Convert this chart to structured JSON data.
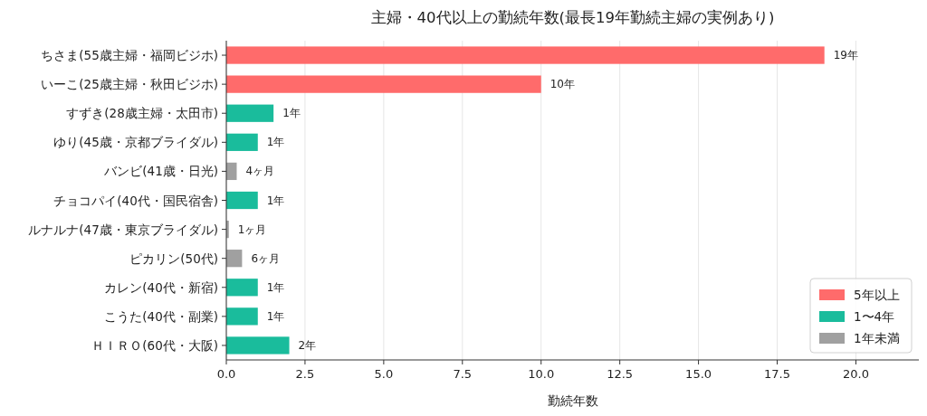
{
  "chart_data": {
    "type": "bar",
    "orientation": "horizontal",
    "title": "主婦・40代以上の勤続年数(最長19年勤続主婦の実例あり)",
    "xlabel": "勤続年数",
    "categories": [
      "ちさま(55歳主婦・福岡ビジホ)",
      "いーこ(25歳主婦・秋田ビジホ)",
      "すずき(28歳主婦・太田市)",
      "ゆり(45歳・京都ブライダル)",
      "バンビ(41歳・日光)",
      "チョコパイ(40代・国民宿舎)",
      "ルナルナ(47歳・東京ブライダル)",
      "ピカリン(50代)",
      "カレン(40代・新宿)",
      "こうた(40代・副業)",
      "ＨＩＲＯ(60代・大阪)"
    ],
    "series": [
      {
        "name": "5年以上",
        "color": "#ff6b6b",
        "values": [
          19,
          10,
          null,
          null,
          null,
          null,
          null,
          null,
          null,
          null,
          null
        ]
      },
      {
        "name": "1〜4年",
        "color": "#1abc9c",
        "values": [
          null,
          null,
          1.5,
          1,
          null,
          1,
          null,
          null,
          1,
          1,
          2
        ]
      },
      {
        "name": "1年未満",
        "color": "#a0a0a0",
        "values": [
          null,
          null,
          null,
          null,
          0.33,
          null,
          0.08,
          0.5,
          null,
          null,
          null
        ]
      }
    ],
    "value_labels": [
      "19年",
      "10年",
      "1年",
      "1年",
      "4ヶ月",
      "1年",
      "1ヶ月",
      "6ヶ月",
      "1年",
      "1年",
      "2年"
    ],
    "xlim": [
      0,
      22
    ],
    "xticks": [
      {
        "value": 0,
        "label": "0.0"
      },
      {
        "value": 2.5,
        "label": "2.5"
      },
      {
        "value": 5,
        "label": "5.0"
      },
      {
        "value": 7.5,
        "label": "7.5"
      },
      {
        "value": 10,
        "label": "10.0"
      },
      {
        "value": 12.5,
        "label": "12.5"
      },
      {
        "value": 15,
        "label": "15.0"
      },
      {
        "value": 17.5,
        "label": "17.5"
      },
      {
        "value": 20,
        "label": "20.0"
      }
    ],
    "grid": "x",
    "legend": "bottom right"
  }
}
